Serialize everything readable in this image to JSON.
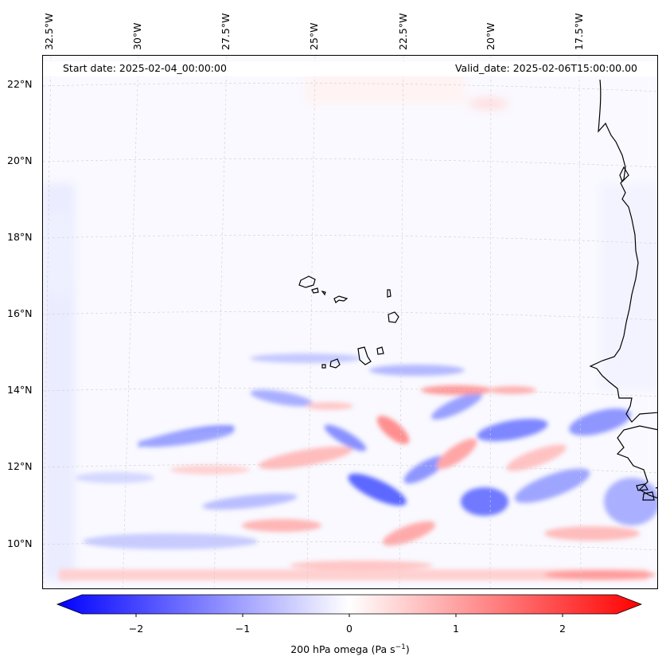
{
  "header": {
    "start_date": "Start date: 2025-02-04_00:00:00",
    "valid_date": "Valid_date: 2025-02-06T15:00:00.00"
  },
  "lon_labels": [
    "32.5°W",
    "30°W",
    "27.5°W",
    "25°W",
    "22.5°W",
    "20°W",
    "17.5°W"
  ],
  "lat_labels": [
    "22°N",
    "20°N",
    "18°N",
    "16°N",
    "14°N",
    "12°N",
    "10°N"
  ],
  "colorbar": {
    "label_prefix": "200 hPa omega (Pa s",
    "label_exponent": "−1",
    "label_suffix": ")",
    "ticks": [
      "−2",
      "−1",
      "0",
      "1",
      "2"
    ],
    "range": [
      -2.5,
      2.5
    ],
    "negative_color": "#0000ff",
    "zero_color": "#ffffff",
    "positive_color": "#ff0000"
  },
  "map": {
    "variable": "200 hPa omega",
    "land_outline_color": "#000000",
    "gridline_color": "#cccccc"
  }
}
